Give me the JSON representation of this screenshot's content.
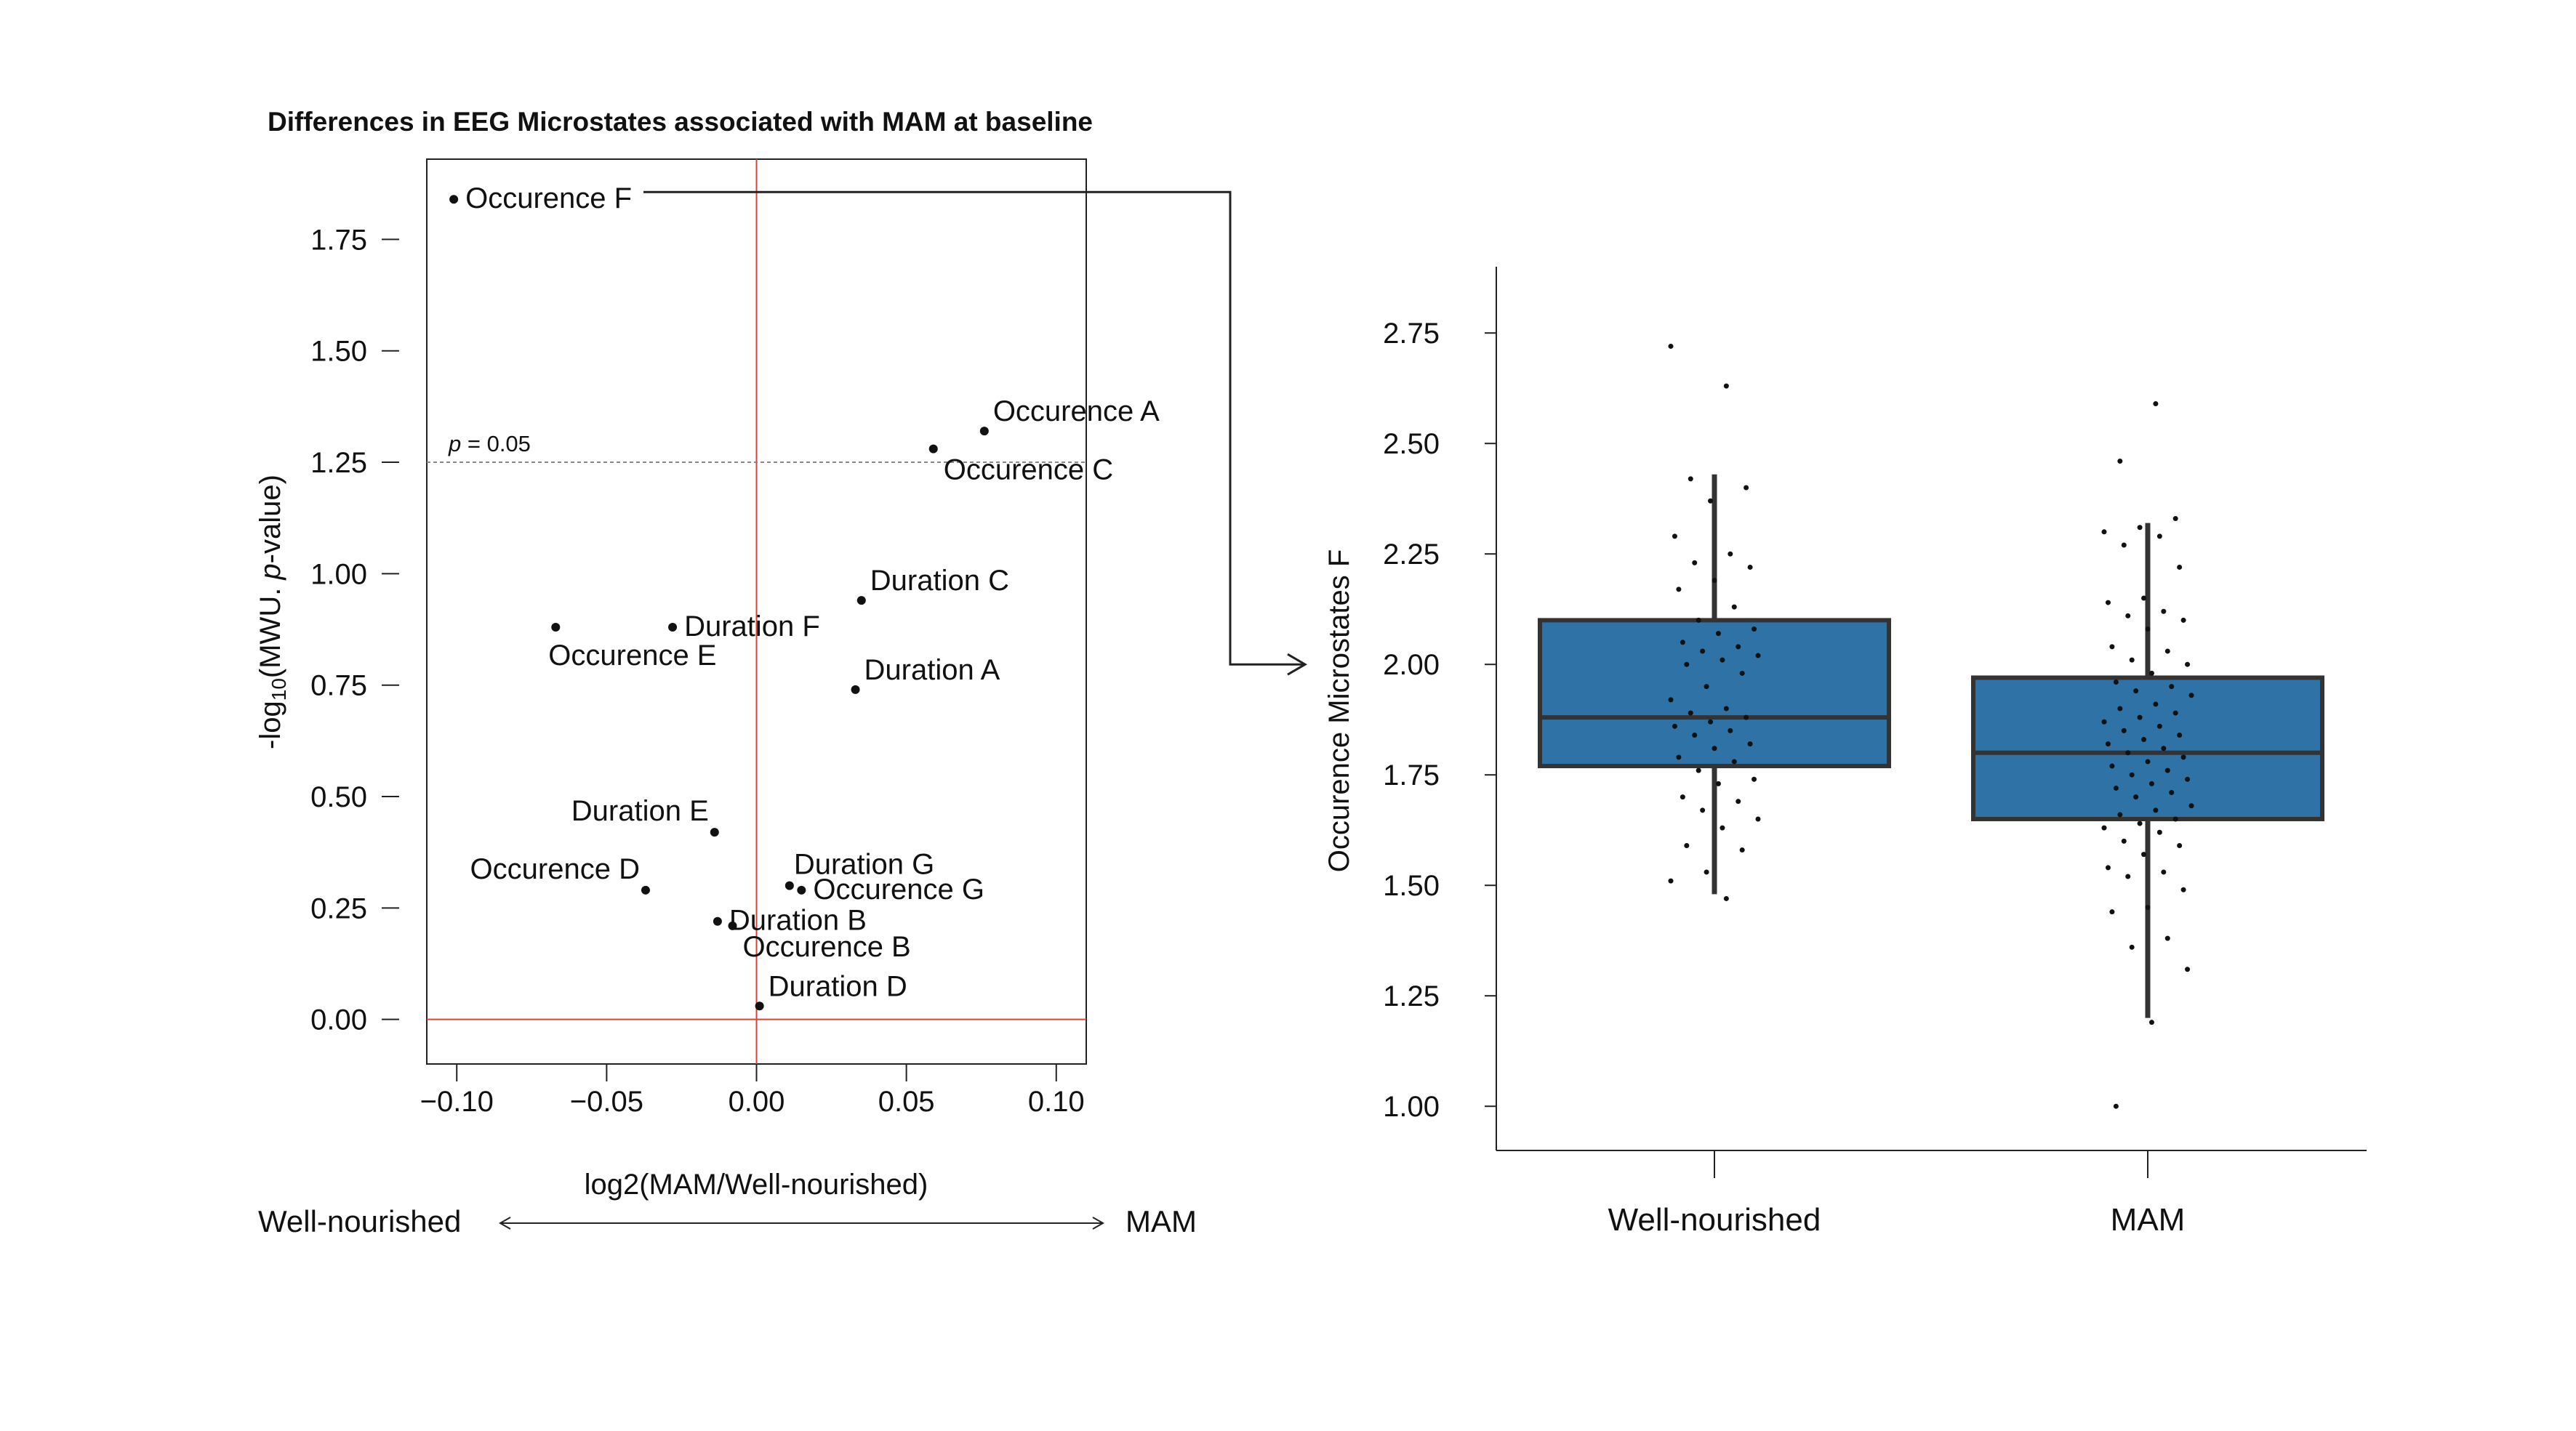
{
  "colors": {
    "axis": "#222222",
    "zero_line": "#e0403a",
    "threshold": "#888888",
    "box_fill": "#2e72a6",
    "box_edge": "#333333",
    "point": "#111111"
  },
  "chart_data": [
    {
      "type": "scatter",
      "title": "Differences in EEG Microstates associated with MAM at baseline",
      "xlabel": "log2(MAM/Well-nourished)",
      "ylabel_parts": [
        "-log",
        "10",
        "(MWU. ",
        "p",
        "-value)"
      ],
      "xlim": [
        -0.11,
        0.11
      ],
      "ylim": [
        -0.1,
        1.93
      ],
      "xticks": [
        -0.1,
        -0.05,
        0.0,
        0.05,
        0.1
      ],
      "xtick_labels": [
        "−0.10",
        "−0.05",
        "0.00",
        "0.05",
        "0.10"
      ],
      "yticks": [
        0.0,
        0.25,
        0.5,
        0.75,
        1.0,
        1.25,
        1.5,
        1.75
      ],
      "ytick_labels": [
        "0.00",
        "0.25",
        "0.50",
        "0.75",
        "1.00",
        "1.25",
        "1.50",
        "1.75"
      ],
      "threshold": {
        "y": 1.25,
        "label_p": "p",
        "label_rest": " = 0.05"
      },
      "direction": {
        "left": "Well-nourished",
        "right": "MAM"
      },
      "points": [
        {
          "label": "Occurence F",
          "x": -0.101,
          "y": 1.84,
          "pos": "right"
        },
        {
          "label": "Occurence A",
          "x": 0.076,
          "y": 1.32,
          "pos": "upright"
        },
        {
          "label": "Occurence C",
          "x": 0.059,
          "y": 1.28,
          "pos": "downright"
        },
        {
          "label": "Duration C",
          "x": 0.035,
          "y": 0.94,
          "pos": "upright"
        },
        {
          "label": "Duration F",
          "x": -0.028,
          "y": 0.88,
          "pos": "right"
        },
        {
          "label": "Occurence E",
          "x": -0.067,
          "y": 0.88,
          "pos": "belowright"
        },
        {
          "label": "Duration A",
          "x": 0.033,
          "y": 0.74,
          "pos": "upright"
        },
        {
          "label": "Duration E",
          "x": -0.014,
          "y": 0.42,
          "pos": "upleft"
        },
        {
          "label": "Occurence D",
          "x": -0.037,
          "y": 0.29,
          "pos": "upleft"
        },
        {
          "label": "Duration G",
          "x": 0.011,
          "y": 0.3,
          "pos": "up"
        },
        {
          "label": "Occurence G",
          "x": 0.015,
          "y": 0.29,
          "pos": "right"
        },
        {
          "label": "Duration B",
          "x": -0.013,
          "y": 0.22,
          "pos": "right"
        },
        {
          "label": "Occurence B",
          "x": -0.008,
          "y": 0.21,
          "pos": "downright"
        },
        {
          "label": "Duration D",
          "x": 0.001,
          "y": 0.03,
          "pos": "upright"
        }
      ],
      "connector": "Occurence F"
    },
    {
      "type": "box",
      "ylabel": "Occurence Microstates F",
      "ylim": [
        0.9,
        2.9
      ],
      "yticks": [
        1.0,
        1.25,
        1.5,
        1.75,
        2.0,
        2.25,
        2.5,
        2.75
      ],
      "ytick_labels": [
        "1.00",
        "1.25",
        "1.50",
        "1.75",
        "2.00",
        "2.25",
        "2.50",
        "2.75"
      ],
      "groups": [
        {
          "name": "Well-nourished",
          "q1": 1.77,
          "median": 1.88,
          "q3": 2.1,
          "whisker_low": 1.48,
          "whisker_high": 2.43,
          "points": [
            2.72,
            2.63,
            2.42,
            2.4,
            2.37,
            2.29,
            2.25,
            2.23,
            2.22,
            2.19,
            2.17,
            2.13,
            2.1,
            2.08,
            2.07,
            2.05,
            2.04,
            2.03,
            2.02,
            2.01,
            2.0,
            1.98,
            1.95,
            1.92,
            1.9,
            1.89,
            1.88,
            1.87,
            1.86,
            1.85,
            1.84,
            1.82,
            1.81,
            1.79,
            1.78,
            1.76,
            1.74,
            1.73,
            1.7,
            1.69,
            1.67,
            1.65,
            1.63,
            1.59,
            1.58,
            1.53,
            1.51,
            1.47
          ]
        },
        {
          "name": "MAM",
          "q1": 1.65,
          "median": 1.8,
          "q3": 1.97,
          "whisker_low": 1.2,
          "whisker_high": 2.32,
          "points": [
            2.59,
            2.46,
            2.33,
            2.31,
            2.3,
            2.29,
            2.27,
            2.22,
            2.15,
            2.14,
            2.12,
            2.11,
            2.1,
            2.08,
            2.04,
            2.03,
            2.01,
            2.0,
            1.98,
            1.96,
            1.95,
            1.94,
            1.93,
            1.91,
            1.9,
            1.89,
            1.88,
            1.87,
            1.86,
            1.85,
            1.84,
            1.83,
            1.82,
            1.81,
            1.8,
            1.79,
            1.78,
            1.77,
            1.76,
            1.75,
            1.74,
            1.73,
            1.72,
            1.71,
            1.7,
            1.68,
            1.67,
            1.66,
            1.65,
            1.64,
            1.63,
            1.62,
            1.6,
            1.59,
            1.57,
            1.54,
            1.53,
            1.52,
            1.49,
            1.45,
            1.44,
            1.38,
            1.36,
            1.31,
            1.19,
            1.0
          ]
        }
      ]
    }
  ]
}
